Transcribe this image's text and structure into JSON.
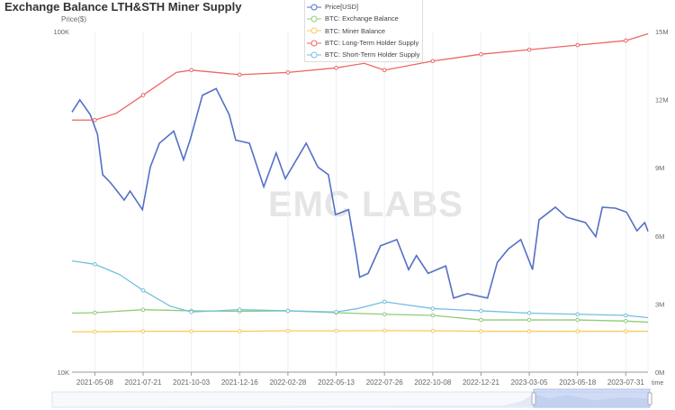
{
  "chart_data": {
    "type": "line",
    "title": "Exchange Balance LTH&STH Miner Supply",
    "ylabel_left": "Price($)",
    "xlabel": "time",
    "watermark": "EMC LABS",
    "y_left": {
      "scale": "log",
      "range": [
        10000,
        100000
      ],
      "ticks": [
        "10K",
        "100K"
      ]
    },
    "y_right": {
      "scale": "linear",
      "range": [
        0,
        15
      ],
      "ticks": [
        "0M",
        "3M",
        "6M",
        "9M",
        "12M",
        "15M"
      ]
    },
    "x_ticks": [
      "2021-05-08",
      "2021-07-21",
      "2021-10-03",
      "2021-12-16",
      "2022-02-28",
      "2022-05-13",
      "2022-07-26",
      "2022-10-08",
      "2022-12-21",
      "2023-03-05",
      "2023-05-18",
      "2023-07-31"
    ],
    "x_range": [
      "2021-04-03",
      "2023-09-03"
    ],
    "grid": "vertical",
    "legend_position": "top-center",
    "series": [
      {
        "name": "Price[USD]",
        "axis": "left",
        "color": "#5470c6",
        "points": [
          [
            "2021-04-03",
            58000
          ],
          [
            "2021-04-15",
            63000
          ],
          [
            "2021-05-01",
            57000
          ],
          [
            "2021-05-12",
            50000
          ],
          [
            "2021-05-20",
            38000
          ],
          [
            "2021-06-01",
            36000
          ],
          [
            "2021-06-22",
            32000
          ],
          [
            "2021-07-01",
            34000
          ],
          [
            "2021-07-20",
            30000
          ],
          [
            "2021-08-01",
            40000
          ],
          [
            "2021-08-15",
            47000
          ],
          [
            "2021-09-06",
            51000
          ],
          [
            "2021-09-21",
            42000
          ],
          [
            "2021-10-01",
            48000
          ],
          [
            "2021-10-20",
            65000
          ],
          [
            "2021-11-10",
            68000
          ],
          [
            "2021-11-30",
            57000
          ],
          [
            "2021-12-10",
            48000
          ],
          [
            "2021-12-31",
            47000
          ],
          [
            "2022-01-22",
            35000
          ],
          [
            "2022-02-10",
            44000
          ],
          [
            "2022-02-24",
            37000
          ],
          [
            "2022-03-28",
            47000
          ],
          [
            "2022-04-15",
            40000
          ],
          [
            "2022-05-01",
            38000
          ],
          [
            "2022-05-12",
            29000
          ],
          [
            "2022-06-01",
            30000
          ],
          [
            "2022-06-13",
            22000
          ],
          [
            "2022-06-18",
            19000
          ],
          [
            "2022-07-01",
            19500
          ],
          [
            "2022-07-20",
            23500
          ],
          [
            "2022-08-14",
            24500
          ],
          [
            "2022-09-01",
            20000
          ],
          [
            "2022-09-13",
            22000
          ],
          [
            "2022-10-01",
            19500
          ],
          [
            "2022-10-28",
            20500
          ],
          [
            "2022-11-09",
            16500
          ],
          [
            "2022-11-30",
            17000
          ],
          [
            "2022-12-31",
            16500
          ],
          [
            "2023-01-15",
            21000
          ],
          [
            "2023-02-01",
            23000
          ],
          [
            "2023-02-20",
            24500
          ],
          [
            "2023-03-10",
            20000
          ],
          [
            "2023-03-20",
            28000
          ],
          [
            "2023-04-14",
            30500
          ],
          [
            "2023-05-01",
            28500
          ],
          [
            "2023-05-30",
            27500
          ],
          [
            "2023-06-15",
            25000
          ],
          [
            "2023-06-25",
            30500
          ],
          [
            "2023-07-15",
            30300
          ],
          [
            "2023-08-01",
            29500
          ],
          [
            "2023-08-17",
            26000
          ],
          [
            "2023-08-29",
            27500
          ],
          [
            "2023-09-03",
            25900
          ]
        ]
      },
      {
        "name": "BTC: Exchange Balance",
        "axis": "right",
        "color": "#91cc75",
        "points": [
          [
            "2021-04-03",
            2.6
          ],
          [
            "2021-05-08",
            2.62
          ],
          [
            "2021-07-21",
            2.75
          ],
          [
            "2021-10-03",
            2.7
          ],
          [
            "2021-12-16",
            2.68
          ],
          [
            "2022-02-28",
            2.7
          ],
          [
            "2022-05-13",
            2.62
          ],
          [
            "2022-07-26",
            2.55
          ],
          [
            "2022-10-08",
            2.5
          ],
          [
            "2022-12-21",
            2.3
          ],
          [
            "2023-03-05",
            2.3
          ],
          [
            "2023-05-18",
            2.3
          ],
          [
            "2023-07-31",
            2.25
          ],
          [
            "2023-09-03",
            2.2
          ]
        ]
      },
      {
        "name": "BTC: Miner Balance",
        "axis": "right",
        "color": "#fac858",
        "points": [
          [
            "2021-04-03",
            1.78
          ],
          [
            "2021-05-08",
            1.78
          ],
          [
            "2021-07-21",
            1.8
          ],
          [
            "2021-10-03",
            1.8
          ],
          [
            "2021-12-16",
            1.8
          ],
          [
            "2022-02-28",
            1.82
          ],
          [
            "2022-05-13",
            1.82
          ],
          [
            "2022-07-26",
            1.83
          ],
          [
            "2022-10-08",
            1.82
          ],
          [
            "2022-12-21",
            1.8
          ],
          [
            "2023-03-05",
            1.8
          ],
          [
            "2023-05-18",
            1.8
          ],
          [
            "2023-07-31",
            1.8
          ],
          [
            "2023-09-03",
            1.8
          ]
        ]
      },
      {
        "name": "BTC: Long-Term Holder Supply",
        "axis": "right",
        "color": "#ee6666",
        "points": [
          [
            "2021-04-03",
            11.1
          ],
          [
            "2021-05-08",
            11.1
          ],
          [
            "2021-06-10",
            11.4
          ],
          [
            "2021-07-21",
            12.2
          ],
          [
            "2021-09-10",
            13.2
          ],
          [
            "2021-10-03",
            13.3
          ],
          [
            "2021-12-16",
            13.1
          ],
          [
            "2022-02-28",
            13.2
          ],
          [
            "2022-05-13",
            13.4
          ],
          [
            "2022-06-25",
            13.6
          ],
          [
            "2022-07-26",
            13.3
          ],
          [
            "2022-10-08",
            13.7
          ],
          [
            "2022-12-21",
            14.0
          ],
          [
            "2023-03-05",
            14.2
          ],
          [
            "2023-05-18",
            14.4
          ],
          [
            "2023-07-31",
            14.6
          ],
          [
            "2023-09-03",
            14.9
          ]
        ]
      },
      {
        "name": "BTC: Short-Term Holder Supply",
        "axis": "right",
        "color": "#73c0de",
        "points": [
          [
            "2021-04-03",
            4.9
          ],
          [
            "2021-05-08",
            4.75
          ],
          [
            "2021-06-15",
            4.3
          ],
          [
            "2021-07-21",
            3.6
          ],
          [
            "2021-09-01",
            2.9
          ],
          [
            "2021-10-03",
            2.65
          ],
          [
            "2021-12-16",
            2.75
          ],
          [
            "2022-02-28",
            2.7
          ],
          [
            "2022-05-13",
            2.65
          ],
          [
            "2022-06-15",
            2.8
          ],
          [
            "2022-07-26",
            3.1
          ],
          [
            "2022-10-08",
            2.8
          ],
          [
            "2022-12-21",
            2.7
          ],
          [
            "2023-03-05",
            2.6
          ],
          [
            "2023-05-18",
            2.55
          ],
          [
            "2023-07-31",
            2.5
          ],
          [
            "2023-09-03",
            2.4
          ]
        ]
      }
    ]
  }
}
